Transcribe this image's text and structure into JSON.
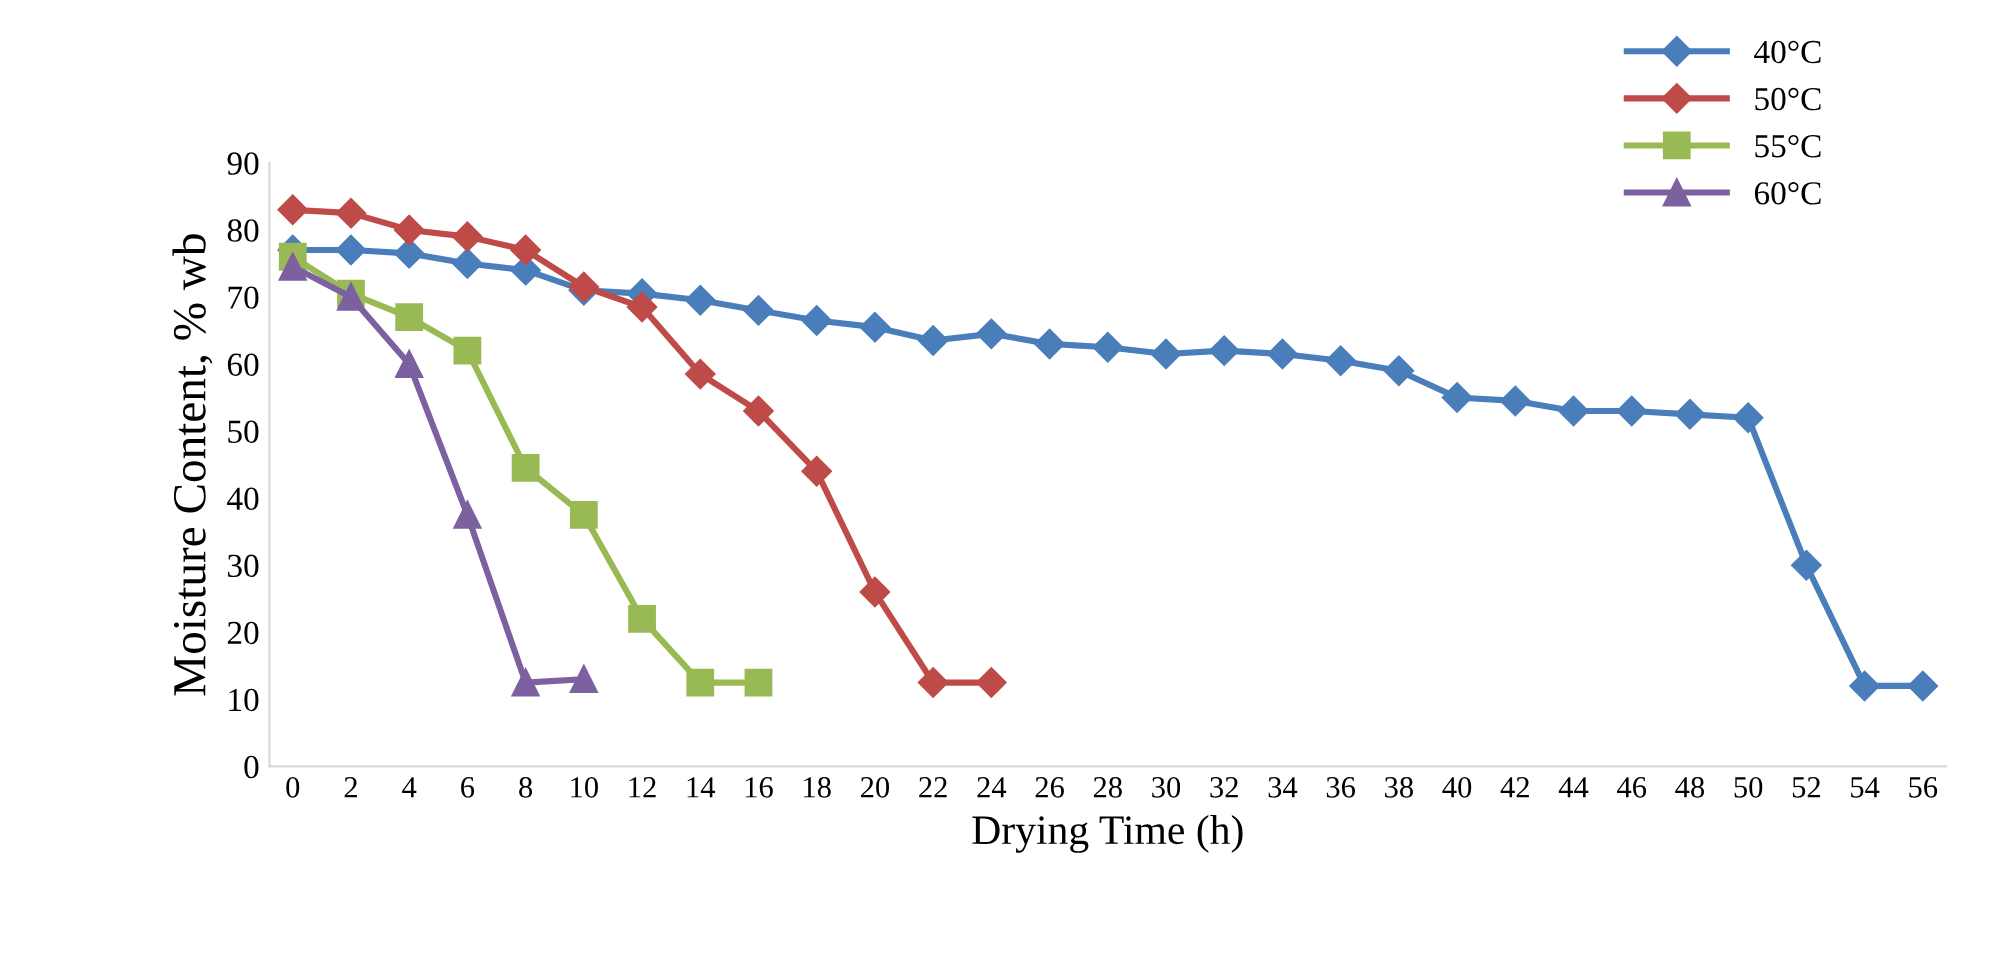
{
  "chart_data": {
    "type": "line",
    "xlabel": "Drying Time (h)",
    "ylabel": "Moisture Content, % wb",
    "categories": [
      "0",
      "2",
      "4",
      "6",
      "8",
      "10",
      "12",
      "14",
      "16",
      "18",
      "20",
      "22",
      "24",
      "26",
      "28",
      "30",
      "32",
      "34",
      "36",
      "38",
      "40",
      "42",
      "44",
      "46",
      "48",
      "50",
      "52",
      "54",
      "56"
    ],
    "ylim": [
      0,
      90
    ],
    "yticks": [
      0,
      10,
      20,
      30,
      40,
      50,
      60,
      70,
      80,
      90
    ],
    "grid": false,
    "legend": "top right",
    "line_style": "solid",
    "series": [
      {
        "name": "40°C",
        "color": "#4a7ebb",
        "marker": "diamond",
        "values": [
          77,
          77,
          76.5,
          75,
          74,
          71,
          70.5,
          69.5,
          68,
          66.5,
          65.5,
          63.5,
          64.5,
          63,
          62.5,
          61.5,
          62,
          61.5,
          60.5,
          59,
          55,
          54.5,
          53,
          53,
          52.5,
          52,
          30,
          12,
          12
        ]
      },
      {
        "name": "50°C",
        "color": "#be4b48",
        "marker": "diamond",
        "values": [
          83,
          82.5,
          80,
          79,
          77,
          71.5,
          68.5,
          58.5,
          53,
          44,
          26,
          12.5,
          12.5,
          null,
          null,
          null,
          null,
          null,
          null,
          null,
          null,
          null,
          null,
          null,
          null,
          null,
          null,
          null,
          null
        ]
      },
      {
        "name": "55°C",
        "color": "#98b954",
        "marker": "square",
        "values": [
          76,
          70.5,
          67,
          62,
          44.5,
          37.5,
          22,
          12.5,
          12.5,
          null,
          null,
          null,
          null,
          null,
          null,
          null,
          null,
          null,
          null,
          null,
          null,
          null,
          null,
          null,
          null,
          null,
          null,
          null,
          null
        ]
      },
      {
        "name": "60°C",
        "color": "#7d60a0",
        "marker": "triangle",
        "values": [
          74.5,
          70,
          60,
          37.5,
          12.5,
          13,
          null,
          null,
          null,
          null,
          null,
          null,
          null,
          null,
          null,
          null,
          null,
          null,
          null,
          null,
          null,
          null,
          null,
          null,
          null,
          null,
          null,
          null,
          null
        ]
      }
    ]
  }
}
